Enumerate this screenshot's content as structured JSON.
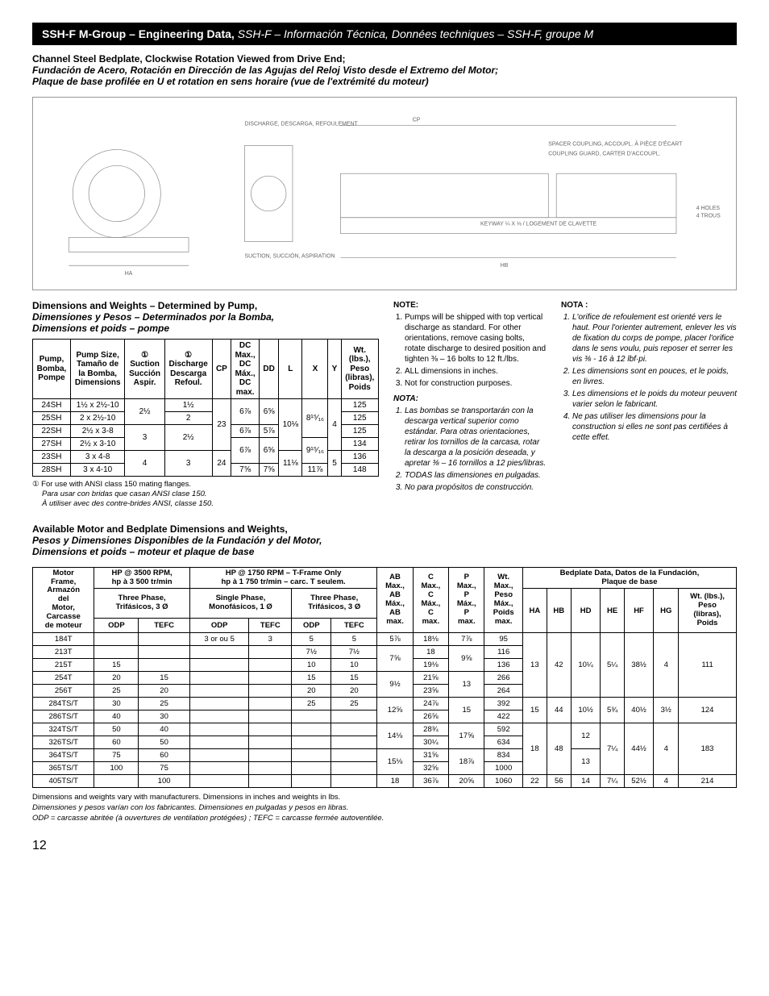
{
  "titlebar": {
    "part1": "SSH-F M-Group – Engineering Data, ",
    "part2": "SSH-F – Información Técnica, Données techniques – SSH-F, groupe M"
  },
  "head1": {
    "en": "Channel Steel Bedplate, Clockwise Rotation Viewed from Drive End;",
    "es": "Fundación de Acero, Rotación en Dirección de las Agujas del Reloj Visto desde el Extremo del Motor;",
    "fr": "Plaque de base profilée en U et rotation en sens horaire (vue de l'extrémité du moteur)"
  },
  "subhead1": {
    "en": "Dimensions and Weights – Determined by Pump,",
    "es": "Dimensiones y Pesos – Determinados por la Bomba,",
    "fr": "Dimensions et poids – pompe"
  },
  "table1": {
    "headers": {
      "pump": "Pump,\nBomba,\nPompe",
      "size": "Pump Size,\nTamaño de\nla Bomba,\nDimensions",
      "suction": "①\nSuction\nSucción\nAspir.",
      "discharge": "①\nDischarge\nDescarga\nRefoul.",
      "cp": "CP",
      "dc": "DC\nMax.,\nDC\nMáx.,\nDC\nmax.",
      "dd": "DD",
      "l": "L",
      "x": "X",
      "y": "Y",
      "wt": "Wt.\n(lbs.),\nPeso\n(libras),\nPoids"
    },
    "rows": [
      {
        "pump": "24SH",
        "size": "1½ x 2½-10",
        "suction": "2½",
        "discharge": "1½",
        "cp": "23",
        "dc": "6⅞",
        "dd": "6⅝",
        "l": "10⅛",
        "x": "8¹⁵⁄₁₆",
        "y": "4",
        "wt": "125"
      },
      {
        "pump": "25SH",
        "size": "2 x 2½-10",
        "suction": "",
        "discharge": "2",
        "cp": "",
        "dc": "",
        "dd": "",
        "l": "",
        "x": "",
        "y": "",
        "wt": "125"
      },
      {
        "pump": "22SH",
        "size": "2½ x 3-8",
        "suction": "3",
        "discharge": "2½",
        "cp": "",
        "dc": "6⅞",
        "dd": "5⅞",
        "l": "",
        "x": "",
        "y": "",
        "wt": "125"
      },
      {
        "pump": "27SH",
        "size": "2½ x 3-10",
        "suction": "",
        "discharge": "",
        "cp": "",
        "dc": "6⅞",
        "dd": "6⅝",
        "l": "",
        "x": "9¹⁵⁄₁₆",
        "y": "",
        "wt": "134"
      },
      {
        "pump": "23SH",
        "size": "3 x 4-8",
        "suction": "4",
        "discharge": "3",
        "cp": "24",
        "dc": "",
        "dd": "",
        "l": "11⅛",
        "x": "",
        "y": "5",
        "wt": "136"
      },
      {
        "pump": "28SH",
        "size": "3 x 4-10",
        "suction": "",
        "discharge": "",
        "cp": "",
        "dc": "7⅝",
        "dd": "7⅝",
        "l": "",
        "x": "11⅞",
        "y": "",
        "wt": "148"
      }
    ]
  },
  "foot1": {
    "en": "① For use with ANSI class 150 mating flanges.",
    "es": "Para usar con bridas que casan ANSI clase 150.",
    "fr": "À utiliser avec des contre-brides ANSI, classe 150."
  },
  "notes_en": {
    "head": "NOTE:",
    "items": [
      "Pumps will be shipped with top vertical discharge as standard. For other orientations, remove casing bolts, rotate discharge to desired position and tighten ⅜ – 16 bolts to 12 ft./lbs.",
      "ALL dimensions in inches.",
      "Not for construction purposes."
    ]
  },
  "notes_es": {
    "head": "NOTA:",
    "items": [
      "Las bombas se transportarán con la descarga vertical superior como estándar. Para otras orientaciones, retirar los tornillos de la carcasa, rotar la descarga a la posición deseada, y apretar ⅜ – 16 tornillos a 12 pies/libras.",
      "TODAS las dimensiones en pulgadas.",
      "No para propósitos de construcción."
    ]
  },
  "notes_fr": {
    "head": "NOTA :",
    "items": [
      "L'orifice de refoulement est orienté vers le haut. Pour l'orienter autrement, enlever les vis de fixation du corps de pompe, placer l'orifice dans le sens voulu, puis reposer et serrer les vis        ⅜ - 16 à 12 lbf·pi.",
      "Les dimensions sont en pouces, et le poids, en livres.",
      "Les dimensions et le poids du moteur peuvent varier selon le fabricant.",
      "Ne pas utiliser les dimensions pour la construction si elles ne sont pas certifiées à cette effet."
    ]
  },
  "subhead2": {
    "en": "Available Motor and Bedplate Dimensions and Weights,",
    "es": "Pesos y Dimensiones Disponibles de la Fundación y del Motor,",
    "fr": "Dimensions et poids – moteur et plaque de base"
  },
  "table2": {
    "heads": {
      "frame": "Motor\nFrame,\nArmazón\ndel\nMotor,\nCarcasse\nde moteur",
      "hp3500": "HP @ 3500 RPM,\nhp à 3 500 tr/min",
      "hp1750": "HP @ 1750 RPM – T-Frame Only\nhp à 1 750 tr/min – carc. T seulem.",
      "three": "Three Phase,\nTrifásicos, 3 Ø",
      "single": "Single Phase,\nMonofásicos, 1 Ø",
      "ab": "AB\nMax.,\nAB\nMáx.,\nAB\nmax.",
      "c": "C\nMax.,\nC\nMáx.,\nC\nmax.",
      "p": "P\nMax.,\nP\nMáx.,\nP\nmax.",
      "wt": "Wt.\nMax.,\nPeso\nMáx.,\nPoids\nmax.",
      "bed": "Bedplate Data, Datos de la Fundación,\nPlaque de base",
      "odp": "ODP",
      "tefc": "TEFC",
      "ha": "HA",
      "hb": "HB",
      "hd": "HD",
      "he": "HE",
      "hf": "HF",
      "hg": "HG",
      "wtl": "Wt. (lbs.),\nPeso\n(libras),\nPoids"
    },
    "rows": [
      {
        "f": "184T",
        "o1": "",
        "t1": "",
        "o2": "3 or ou 5",
        "t2": "3",
        "o3": "5",
        "t3": "5",
        "ab": "5⅞",
        "c": "18⅛",
        "p": "7⅞",
        "wt": "95",
        "ha": "13",
        "hb": "42",
        "hd": "10¼",
        "he": "5¼",
        "hf": "38½",
        "hg": "4",
        "wtl": "111"
      },
      {
        "f": "213T",
        "o1": "",
        "t1": "",
        "o2": "",
        "t2": "",
        "o3": "7½",
        "t3": "7½",
        "ab": "7⅝",
        "c": "18",
        "p": "9⅝",
        "wt": "116",
        "ha": "",
        "hb": "",
        "hd": "",
        "he": "",
        "hf": "",
        "hg": "",
        "wtl": ""
      },
      {
        "f": "215T",
        "o1": "15",
        "t1": "",
        "o2": "",
        "t2": "",
        "o3": "10",
        "t3": "10",
        "ab": "",
        "c": "19⅛",
        "p": "",
        "wt": "136",
        "ha": "",
        "hb": "",
        "hd": "",
        "he": "",
        "hf": "",
        "hg": "",
        "wtl": ""
      },
      {
        "f": "254T",
        "o1": "20",
        "t1": "15",
        "o2": "",
        "t2": "",
        "o3": "15",
        "t3": "15",
        "ab": "9½",
        "c": "21⅝",
        "p": "13",
        "wt": "266",
        "ha": "",
        "hb": "",
        "hd": "",
        "he": "",
        "hf": "",
        "hg": "",
        "wtl": ""
      },
      {
        "f": "256T",
        "o1": "25",
        "t1": "20",
        "o2": "",
        "t2": "",
        "o3": "20",
        "t3": "20",
        "ab": "",
        "c": "23⅝",
        "p": "",
        "wt": "264",
        "ha": "",
        "hb": "",
        "hd": "",
        "he": "",
        "hf": "",
        "hg": "",
        "wtl": ""
      },
      {
        "f": "284TS/T",
        "o1": "30",
        "t1": "25",
        "o2": "",
        "t2": "",
        "o3": "25",
        "t3": "25",
        "ab": "12⅝",
        "c": "24⅞",
        "p": "15",
        "wt": "392",
        "ha": "15",
        "hb": "44",
        "hd": "10½",
        "he": "5¾",
        "hf": "40½",
        "hg": "3½",
        "wtl": "124"
      },
      {
        "f": "286TS/T",
        "o1": "40",
        "t1": "30",
        "o2": "",
        "t2": "",
        "o3": "",
        "t3": "",
        "ab": "",
        "c": "26⅝",
        "p": "",
        "wt": "422",
        "ha": "",
        "hb": "",
        "hd": "",
        "he": "",
        "hf": "",
        "hg": "",
        "wtl": ""
      },
      {
        "f": "324TS/T",
        "o1": "50",
        "t1": "40",
        "o2": "",
        "t2": "",
        "o3": "",
        "t3": "",
        "ab": "14⅛",
        "c": "28¾",
        "p": "17⅝",
        "wt": "592",
        "ha": "18",
        "hb": "48",
        "hd": "12",
        "he": "7¼",
        "hf": "44½",
        "hg": "4",
        "wtl": "183"
      },
      {
        "f": "326TS/T",
        "o1": "60",
        "t1": "50",
        "o2": "",
        "t2": "",
        "o3": "",
        "t3": "",
        "ab": "",
        "c": "30¼",
        "p": "",
        "wt": "634",
        "ha": "",
        "hb": "",
        "hd": "",
        "he": "",
        "hf": "",
        "hg": "",
        "wtl": ""
      },
      {
        "f": "364TS/T",
        "o1": "75",
        "t1": "60",
        "o2": "",
        "t2": "",
        "o3": "",
        "t3": "",
        "ab": "15⅛",
        "c": "31⅝",
        "p": "18⅞",
        "wt": "834",
        "ha": "",
        "hb": "",
        "hd": "13",
        "he": "",
        "hf": "",
        "hg": "",
        "wtl": ""
      },
      {
        "f": "365TS/T",
        "o1": "100",
        "t1": "75",
        "o2": "",
        "t2": "",
        "o3": "",
        "t3": "",
        "ab": "",
        "c": "32⅝",
        "p": "",
        "wt": "1000",
        "ha": "",
        "hb": "",
        "hd": "",
        "he": "",
        "hf": "",
        "hg": "",
        "wtl": ""
      },
      {
        "f": "405TS/T",
        "o1": "",
        "t1": "100",
        "o2": "",
        "t2": "",
        "o3": "",
        "t3": "",
        "ab": "18",
        "c": "36⅞",
        "p": "20⅝",
        "wt": "1060",
        "ha": "22",
        "hb": "56",
        "hd": "14",
        "he": "7¼",
        "hf": "52½",
        "hg": "4",
        "wtl": "214"
      }
    ]
  },
  "endnotes": {
    "l1": "Dimensions and weights vary with manufacturers. Dimensions in inches and weights in lbs.",
    "l2": "Dimensiones y pesos varían con los fabricantes. Dimensiones en pulgadas y pesos en libras.",
    "l3": "ODP = carcasse abritée (à ouvertures de ventilation protégées) ; TEFC = carcasse fermée autoventilée."
  },
  "pagenum": "12"
}
